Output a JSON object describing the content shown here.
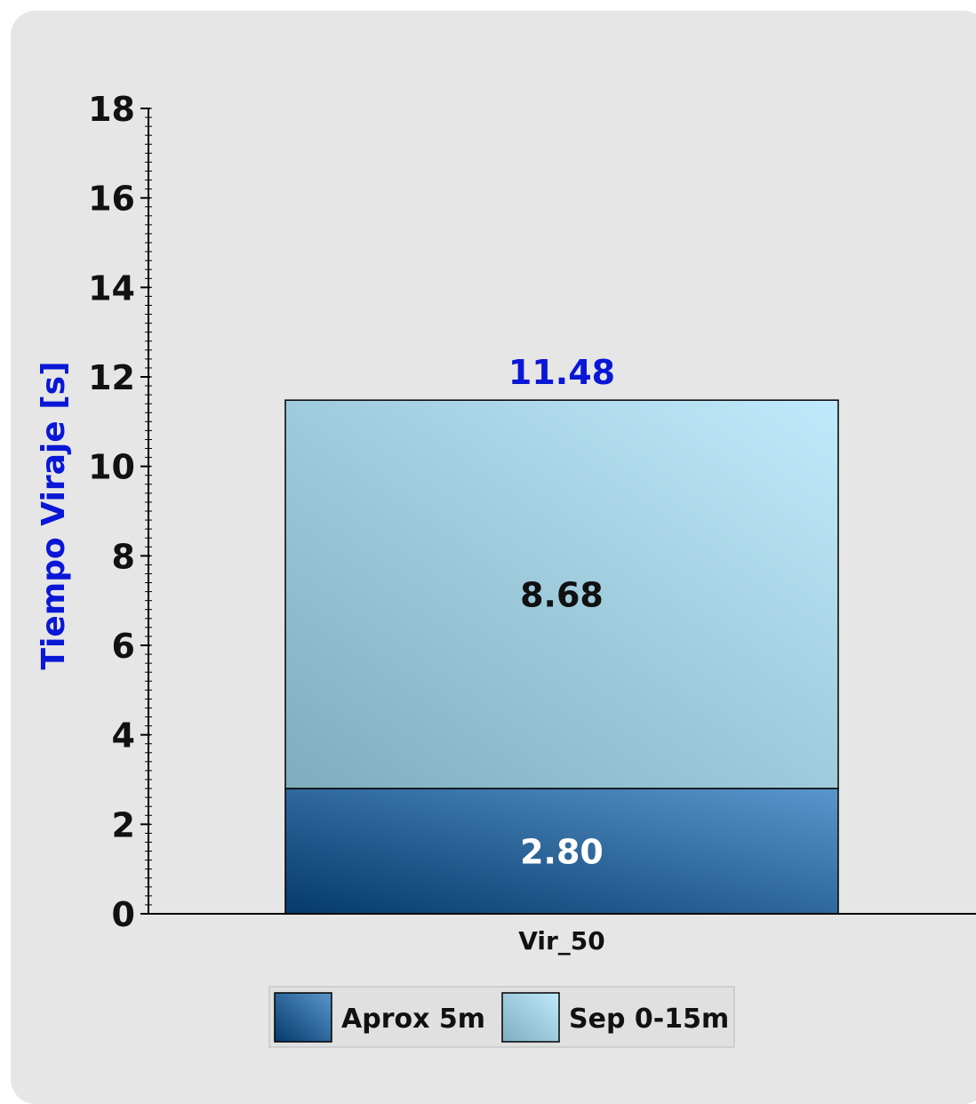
{
  "chart_data": {
    "type": "bar",
    "stacked": true,
    "categories": [
      "Vir_50"
    ],
    "series": [
      {
        "name": "Aprox 5m",
        "values": [
          2.8
        ],
        "labels": [
          "2.80"
        ]
      },
      {
        "name": "Sep 0-15m",
        "values": [
          8.68
        ],
        "labels": [
          "8.68"
        ]
      }
    ],
    "total_labels": [
      "11.48"
    ],
    "ylabel": "Tiempo Viraje [s]",
    "xlabel": "",
    "ylim": [
      0,
      18
    ],
    "yticks": [
      0,
      2,
      4,
      6,
      8,
      10,
      12,
      14,
      16,
      18
    ],
    "minor_tick_step": 0.2,
    "grid": false,
    "legend": "bottom-center",
    "colors": {
      "ylabel": "#0a17d6",
      "total_label": "#0a17d6",
      "series_0_label": "#ffffff",
      "series_1_label": "#111111",
      "series_0_dark": "#053a6b",
      "series_0_light": "#5a96cc",
      "series_1_dark": "#7eaebe",
      "series_1_light": "#bfeafb",
      "background": "#e6e6e6"
    }
  }
}
